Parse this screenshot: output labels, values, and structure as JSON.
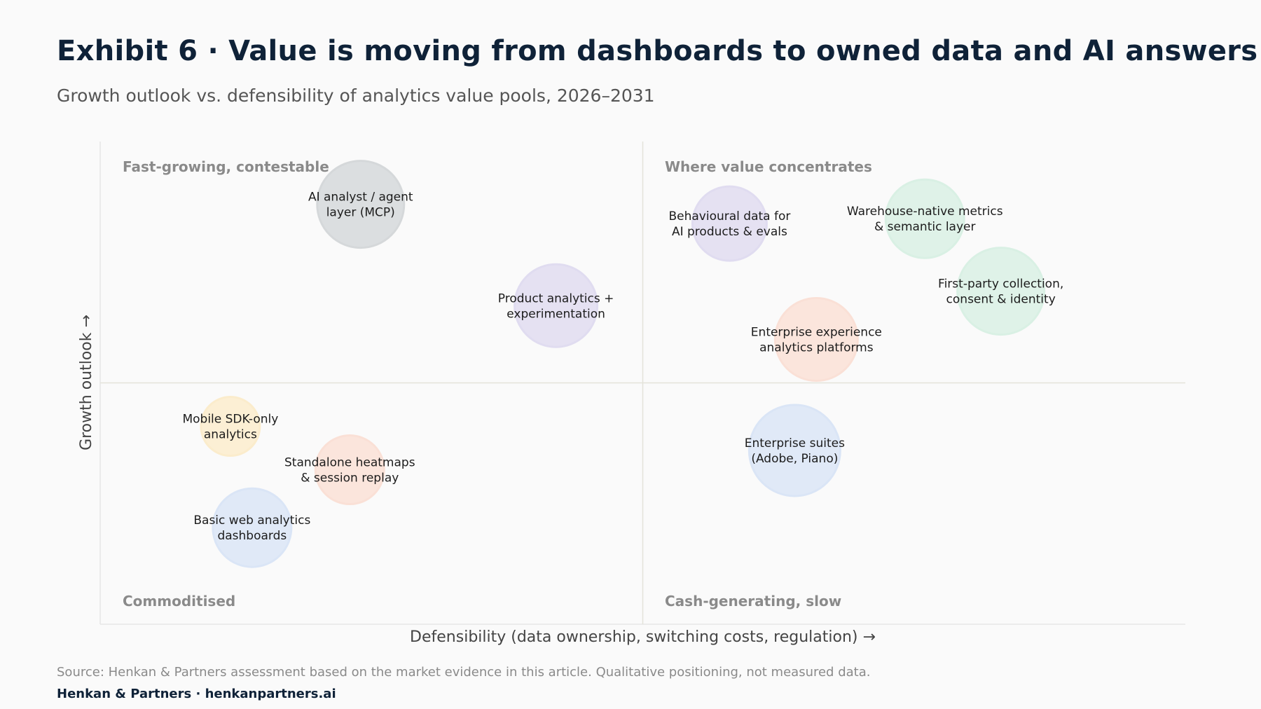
{
  "header": {
    "title": "Exhibit 6 · Value is moving from dashboards to owned data and AI answers",
    "subtitle": "Growth outlook vs. defensibility of analytics value pools, 2026–2031"
  },
  "footer": {
    "source": "Source: Henkan & Partners assessment based on the market evidence in this article. Qualitative positioning, not measured data.",
    "brand": "Henkan & Partners · henkanpartners.ai"
  },
  "chart_data": {
    "type": "scatter",
    "xlabel": "Defensibility (data ownership, switching costs, regulation) →",
    "ylabel": "Growth outlook →",
    "xlim": [
      0,
      100
    ],
    "ylim": [
      0,
      100
    ],
    "grid": false,
    "dividers": {
      "x": 50,
      "y": 50
    },
    "quadrant_labels": {
      "top_left": "Fast-growing, contestable",
      "top_right": "Where value concentrates",
      "bottom_left": "Commoditised",
      "bottom_right": "Cash-generating, slow"
    },
    "colors": {
      "gray": "#d5d8da",
      "purple": "#e0dcf0",
      "green": "#d9f0e4",
      "salmon": "#fae0d6",
      "blue": "#dae5f6",
      "yellow": "#fbeccc"
    },
    "points": [
      {
        "lines": [
          "AI analyst / agent",
          "layer (MCP)"
        ],
        "x": 24,
        "y": 87,
        "size": 62,
        "color": "gray"
      },
      {
        "lines": [
          "Product analytics +",
          "experimentation"
        ],
        "x": 42,
        "y": 66,
        "size": 59,
        "color": "purple"
      },
      {
        "lines": [
          "Behavioural data for",
          "AI products & evals"
        ],
        "x": 58,
        "y": 83,
        "size": 53,
        "color": "purple"
      },
      {
        "lines": [
          "Warehouse-native metrics",
          "& semantic layer"
        ],
        "x": 76,
        "y": 84,
        "size": 56,
        "color": "green"
      },
      {
        "lines": [
          "First-party collection,",
          "consent & identity"
        ],
        "x": 83,
        "y": 69,
        "size": 62,
        "color": "green"
      },
      {
        "lines": [
          "Enterprise experience",
          "analytics platforms"
        ],
        "x": 66,
        "y": 59,
        "size": 59,
        "color": "salmon"
      },
      {
        "lines": [
          "Enterprise suites",
          "(Adobe, Piano)"
        ],
        "x": 64,
        "y": 36,
        "size": 65,
        "color": "blue"
      },
      {
        "lines": [
          "Mobile SDK-only",
          "analytics"
        ],
        "x": 12,
        "y": 41,
        "size": 42,
        "color": "yellow"
      },
      {
        "lines": [
          "Standalone heatmaps",
          "& session replay"
        ],
        "x": 23,
        "y": 32,
        "size": 49,
        "color": "salmon"
      },
      {
        "lines": [
          "Basic web analytics",
          "dashboards"
        ],
        "x": 14,
        "y": 20,
        "size": 56,
        "color": "blue"
      }
    ]
  }
}
